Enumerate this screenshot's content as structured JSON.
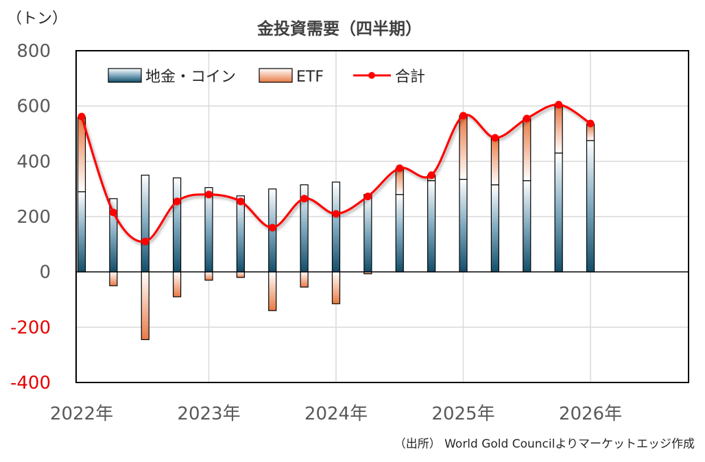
{
  "chart_data": {
    "type": "bar",
    "title": "金投資需要（四半期）",
    "unit_label": "（トン）",
    "source": "（出所） World Gold Councilよりマーケットエッジ作成",
    "x_tick_labels": [
      "2022年",
      "2023年",
      "2024年",
      "2025年",
      "2026年"
    ],
    "y_ticks": [
      800,
      600,
      400,
      200,
      0,
      -200,
      -400
    ],
    "ylim": [
      -400,
      800
    ],
    "grid": true,
    "legend_position": "top-left",
    "quarters": [
      "2022Q1",
      "2022Q2",
      "2022Q3",
      "2022Q4",
      "2023Q1",
      "2023Q2",
      "2023Q3",
      "2023Q4",
      "2024Q1",
      "2024Q2",
      "2024Q3",
      "2024Q4",
      "2025Q1",
      "2025Q2",
      "2025Q3",
      "2025Q4",
      "2026Q1"
    ],
    "series": [
      {
        "name": "地金・コイン",
        "kind": "bar",
        "values": [
          290,
          265,
          350,
          340,
          305,
          275,
          300,
          315,
          325,
          280,
          280,
          330,
          335,
          315,
          330,
          430,
          475
        ]
      },
      {
        "name": "ETF",
        "kind": "bar",
        "values": [
          270,
          -50,
          -245,
          -90,
          -30,
          -20,
          -140,
          -55,
          -115,
          -7,
          95,
          20,
          230,
          170,
          225,
          170,
          60
        ]
      },
      {
        "name": "合計",
        "kind": "line",
        "values": [
          562,
          215,
          110,
          255,
          280,
          255,
          160,
          265,
          210,
          273,
          375,
          350,
          565,
          485,
          555,
          605,
          537
        ]
      }
    ],
    "colors": {
      "bar_stock": "#1f5f7a",
      "bar_etf": "#ee8a5a",
      "line": "#ff0000",
      "axis_negative": "#e60000"
    }
  }
}
